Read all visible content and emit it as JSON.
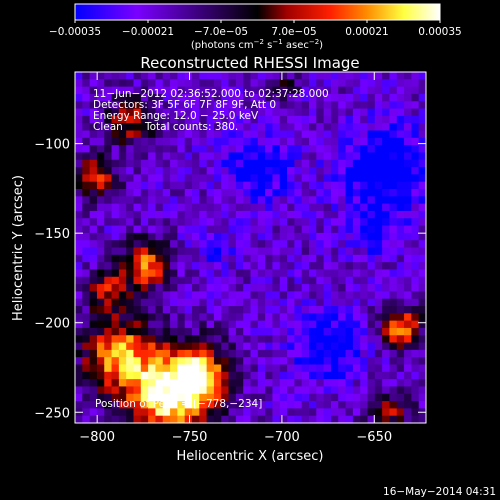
{
  "chart_data": {
    "type": "heatmap",
    "title": "Reconstructed RHESSI Image",
    "xlabel": "Heliocentric X (arcsec)",
    "ylabel": "Heliocentric Y (arcsec)",
    "xlim": [
      -812,
      -622
    ],
    "ylim": [
      -256,
      -60
    ],
    "xticks": [
      -800,
      -750,
      -700,
      -650
    ],
    "yticks": [
      -100,
      -150,
      -200,
      -250
    ],
    "xtick_labels": [
      "−800",
      "−750",
      "−700",
      "−650"
    ],
    "ytick_labels": [
      "−100",
      "−150",
      "−200",
      "−250"
    ],
    "colorbar": {
      "min": -0.00035,
      "max": 0.00035,
      "tick_labels": [
        "−0.00035",
        "−0.00021",
        "−7.0e−05",
        "7.0e−05",
        "0.00021",
        "0.00035"
      ],
      "tick_values": [
        -0.00035,
        -0.00021,
        -7e-05,
        7e-05,
        0.00021,
        0.00035
      ],
      "unit_parts": [
        "(photons cm",
        "−2",
        " s",
        "−1",
        " asec",
        "−2",
        ")"
      ],
      "colors": [
        "#0000ff",
        "#7a00ff",
        "#000000",
        "#a00000",
        "#ff2000",
        "#ff8c00",
        "#ffff40",
        "#ffffff"
      ]
    },
    "annotations": [
      "11−Jun−2012 02:36:52.000 to 02:37:28.000",
      "Detectors: 3F 5F 6F 7F 8F 9F, Att 0",
      "Energy Range: 12.0 − 25.0 keV",
      "Clean",
      "Total counts: 380."
    ],
    "peak_label": "Position of Peak = [−778,−234]",
    "peak": {
      "x": -778,
      "y": -234
    },
    "footer_date": "16−May−2014 04:31"
  }
}
